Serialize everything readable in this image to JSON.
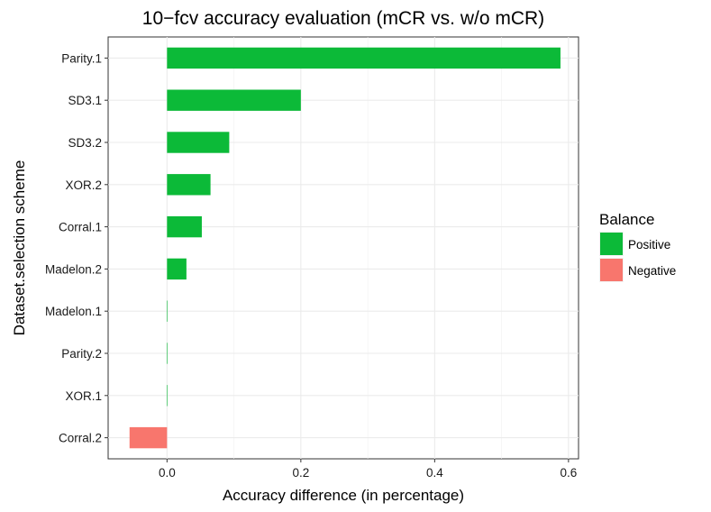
{
  "chart_data": {
    "type": "bar",
    "orientation": "horizontal",
    "title": "10−fcv accuracy evaluation (mCR vs. w/o mCR)",
    "xlabel": "Accuracy difference (in percentage)",
    "ylabel": "Dataset.selection scheme",
    "xlim": [
      -0.088,
      0.615
    ],
    "xticks": [
      0.0,
      0.2,
      0.4,
      0.6
    ],
    "xtick_labels": [
      "0.0",
      "0.2",
      "0.4",
      "0.6"
    ],
    "grid": true,
    "categories": [
      "Parity.1",
      "SD3.1",
      "SD3.2",
      "XOR.2",
      "Corral.1",
      "Madelon.2",
      "Madelon.1",
      "Parity.2",
      "XOR.1",
      "Corral.2"
    ],
    "values": [
      0.588,
      0.2,
      0.093,
      0.065,
      0.052,
      0.029,
      0.0,
      0.0,
      0.0,
      -0.056
    ],
    "balance": [
      "Positive",
      "Positive",
      "Positive",
      "Positive",
      "Positive",
      "Positive",
      "Positive",
      "Positive",
      "Positive",
      "Negative"
    ],
    "legend": {
      "title": "Balance",
      "position": "right",
      "entries": [
        {
          "label": "Positive",
          "color": "#0cba38"
        },
        {
          "label": "Negative",
          "color": "#f8766d"
        }
      ]
    }
  }
}
